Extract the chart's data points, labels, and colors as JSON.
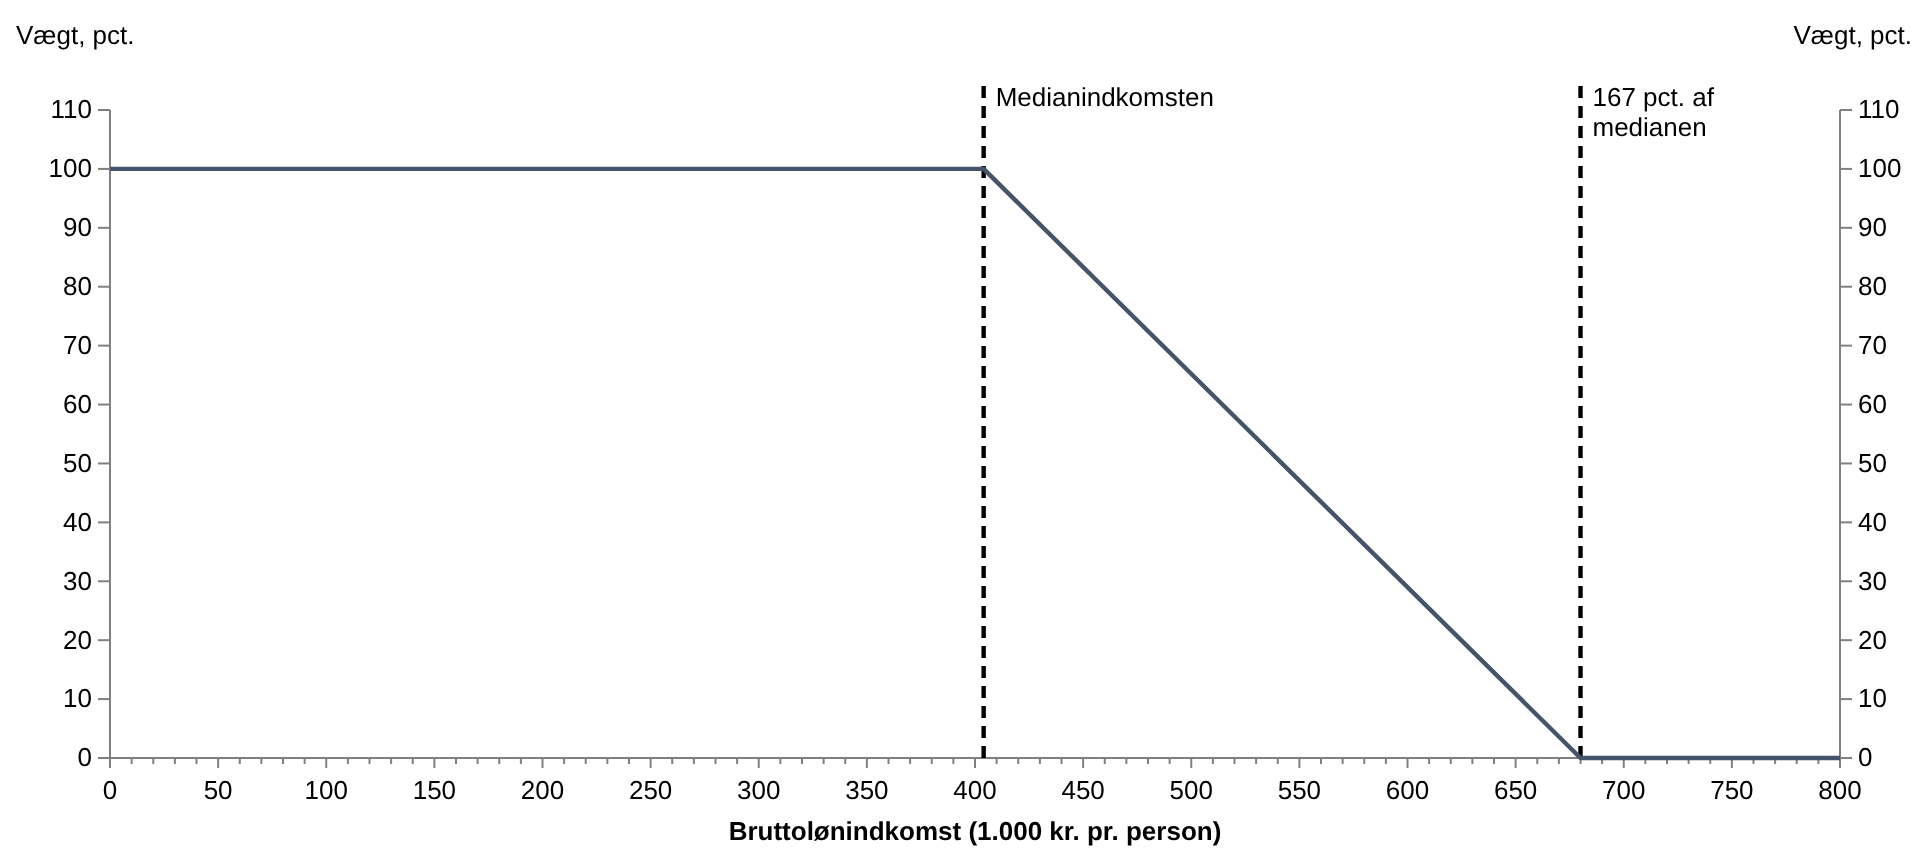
{
  "chart_data": {
    "type": "line",
    "xlabel": "Bruttolønindkomst (1.000 kr. pr. person)",
    "ylabel": "Vægt, pct.",
    "y2label": "Vægt, pct.",
    "series": [
      {
        "x": [
          0,
          404,
          680,
          800
        ],
        "values": [
          100,
          100,
          0,
          0
        ],
        "color": "#44546a"
      }
    ],
    "xlim": [
      0,
      800
    ],
    "xticks": [
      0,
      {
        "value": 10,
        "label": null
      },
      {
        "value": 20,
        "label": null
      },
      {
        "value": 30,
        "label": null
      },
      {
        "value": 40,
        "label": null
      },
      50,
      {
        "value": 60,
        "label": null
      },
      {
        "value": 70,
        "label": null
      },
      {
        "value": 80,
        "label": null
      },
      {
        "value": 90,
        "label": null
      },
      100,
      {
        "value": 110,
        "label": null
      },
      {
        "value": 120,
        "label": null
      },
      {
        "value": 130,
        "label": null
      },
      {
        "value": 140,
        "label": null
      },
      150,
      {
        "value": 160,
        "label": null
      },
      {
        "value": 170,
        "label": null
      },
      {
        "value": 180,
        "label": null
      },
      {
        "value": 190,
        "label": null
      },
      200,
      {
        "value": 210,
        "label": null
      },
      {
        "value": 220,
        "label": null
      },
      {
        "value": 230,
        "label": null
      },
      {
        "value": 240,
        "label": null
      },
      250,
      {
        "value": 260,
        "label": null
      },
      {
        "value": 270,
        "label": null
      },
      {
        "value": 280,
        "label": null
      },
      {
        "value": 290,
        "label": null
      },
      300,
      {
        "value": 310,
        "label": null
      },
      {
        "value": 320,
        "label": null
      },
      {
        "value": 330,
        "label": null
      },
      {
        "value": 340,
        "label": null
      },
      350,
      {
        "value": 360,
        "label": null
      },
      {
        "value": 370,
        "label": null
      },
      {
        "value": 380,
        "label": null
      },
      {
        "value": 390,
        "label": null
      },
      400,
      {
        "value": 410,
        "label": null
      },
      {
        "value": 420,
        "label": null
      },
      {
        "value": 430,
        "label": null
      },
      {
        "value": 440,
        "label": null
      },
      450,
      {
        "value": 460,
        "label": null
      },
      {
        "value": 470,
        "label": null
      },
      {
        "value": 480,
        "label": null
      },
      {
        "value": 490,
        "label": null
      },
      500,
      {
        "value": 510,
        "label": null
      },
      {
        "value": 520,
        "label": null
      },
      {
        "value": 530,
        "label": null
      },
      {
        "value": 540,
        "label": null
      },
      550,
      {
        "value": 560,
        "label": null
      },
      {
        "value": 570,
        "label": null
      },
      {
        "value": 580,
        "label": null
      },
      {
        "value": 590,
        "label": null
      },
      600,
      {
        "value": 610,
        "label": null
      },
      {
        "value": 620,
        "label": null
      },
      {
        "value": 630,
        "label": null
      },
      {
        "value": 640,
        "label": null
      },
      650,
      {
        "value": 660,
        "label": null
      },
      {
        "value": 670,
        "label": null
      },
      {
        "value": 680,
        "label": null
      },
      {
        "value": 690,
        "label": null
      },
      700,
      {
        "value": 710,
        "label": null
      },
      {
        "value": 720,
        "label": null
      },
      {
        "value": 730,
        "label": null
      },
      {
        "value": 740,
        "label": null
      },
      750,
      {
        "value": 760,
        "label": null
      },
      {
        "value": 770,
        "label": null
      },
      {
        "value": 780,
        "label": null
      },
      {
        "value": 790,
        "label": null
      },
      800
    ],
    "ylim": [
      0,
      110
    ],
    "yticks": [
      0,
      10,
      20,
      30,
      40,
      50,
      60,
      70,
      80,
      90,
      100,
      110
    ],
    "y2lim": [
      0,
      110
    ],
    "y2ticks": [
      0,
      10,
      20,
      30,
      40,
      50,
      60,
      70,
      80,
      90,
      100,
      110
    ],
    "ref_lines": [
      {
        "axis": "x",
        "value": 404,
        "label": "Medianindkomsten",
        "color": "#000000",
        "line_style": "dashed"
      },
      {
        "axis": "x",
        "value": 680,
        "label": "167 pct. af medianen",
        "color": "#000000",
        "line_style": "dashed"
      }
    ],
    "grid": false,
    "marker": "none",
    "line_style": "solid"
  }
}
